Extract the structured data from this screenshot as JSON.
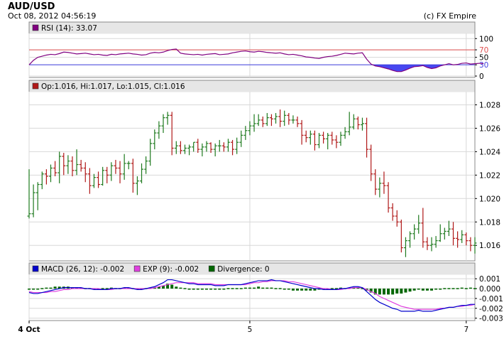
{
  "header": {
    "pair": "AUD/USD",
    "timestamp": "Oct 08, 2012 04:56:19",
    "copyright": "(c) FX Empire"
  },
  "colors": {
    "up": "#1e7a1e",
    "down": "#b01818",
    "rsi_line": "#800080",
    "rsi_fill": "#3333ee",
    "rsi_70": "#e05050",
    "rsi_30": "#4040e0",
    "macd": "#0000cc",
    "exp": "#e040e0",
    "divergence": "#006600",
    "legend_bg": "#e6e6e6",
    "grid": "#d8d8d8"
  },
  "chart_data": [
    {
      "type": "line",
      "panel": "rsi",
      "legend": [
        {
          "swatch_color": "#800080",
          "label": "RSI (14): 33.07"
        }
      ],
      "yticks": [
        "100",
        "70",
        "50",
        "30",
        "0"
      ],
      "ytick_values": [
        100,
        70,
        50,
        30,
        0
      ],
      "ylim": [
        0,
        110
      ],
      "reference_lines": [
        70,
        30
      ],
      "series": [
        {
          "values": [
            30,
            42,
            50,
            53,
            56,
            58,
            57,
            60,
            64,
            63,
            61,
            59,
            60,
            61,
            59,
            57,
            58,
            56,
            55,
            58,
            57,
            59,
            60,
            61,
            59,
            58,
            56,
            57,
            61,
            63,
            62,
            64,
            68,
            71,
            72,
            61,
            59,
            58,
            57,
            58,
            56,
            58,
            59,
            60,
            57,
            58,
            59,
            62,
            64,
            66,
            67,
            65,
            64,
            66,
            65,
            63,
            62,
            61,
            62,
            59,
            57,
            58,
            56,
            54,
            51,
            50,
            48,
            47,
            50,
            52,
            53,
            55,
            58,
            61,
            60,
            59,
            61,
            62,
            45,
            32,
            27,
            25,
            22,
            19,
            15,
            12,
            12,
            16,
            21,
            25,
            26,
            28,
            23,
            20,
            22,
            27,
            30,
            33,
            30,
            31,
            34,
            35,
            32,
            33,
            34,
            33
          ]
        }
      ]
    },
    {
      "type": "ohlc",
      "panel": "price",
      "legend": [
        {
          "swatch_color": "#b01818",
          "label": "Op:1.016, Hi:1.017, Lo:1.015, Cl:1.016"
        }
      ],
      "yticks": [
        "1.028",
        "1.026",
        "1.024",
        "1.022",
        "1.020",
        "1.018",
        "1.016"
      ],
      "ytick_values": [
        1.028,
        1.026,
        1.024,
        1.022,
        1.02,
        1.018,
        1.016
      ],
      "ylim": [
        1.0148,
        1.029
      ],
      "close": [
        1.0187,
        1.0205,
        1.0212,
        1.0221,
        1.0219,
        1.0226,
        1.0222,
        1.0236,
        1.0228,
        1.0232,
        1.0224,
        1.0229,
        1.0226,
        1.0221,
        1.0211,
        1.0218,
        1.0212,
        1.0224,
        1.022,
        1.0228,
        1.0226,
        1.0221,
        1.023,
        1.023,
        1.0213,
        1.0215,
        1.0225,
        1.0232,
        1.0247,
        1.0256,
        1.0262,
        1.0269,
        1.0271,
        1.0243,
        1.0245,
        1.0241,
        1.0243,
        1.0244,
        1.0248,
        1.0242,
        1.0244,
        1.0247,
        1.0242,
        1.0245,
        1.0245,
        1.0244,
        1.0248,
        1.0242,
        1.0248,
        1.0254,
        1.0258,
        1.0262,
        1.0264,
        1.0267,
        1.0264,
        1.0269,
        1.0268,
        1.027,
        1.0266,
        1.0271,
        1.0267,
        1.0267,
        1.0264,
        1.0254,
        1.0252,
        1.0255,
        1.0246,
        1.0254,
        1.0251,
        1.0254,
        1.025,
        1.0248,
        1.0254,
        1.0257,
        1.0261,
        1.0268,
        1.0263,
        1.0264,
        1.0242,
        1.0221,
        1.0208,
        1.0213,
        1.0211,
        1.0192,
        1.0185,
        1.018,
        1.0158,
        1.0164,
        1.017,
        1.0174,
        1.0179,
        1.0163,
        1.016,
        1.0161,
        1.0164,
        1.017,
        1.0172,
        1.0174,
        1.0166,
        1.0165,
        1.0169,
        1.0164,
        1.016,
        1.0162
      ],
      "series": [
        {
          "name": "Op",
          "values": [
            1.0185,
            1.0187,
            1.0205,
            1.0212,
            1.0221,
            1.0219,
            1.0226,
            1.0222,
            1.0236,
            1.0228,
            1.0232,
            1.0224,
            1.0229,
            1.0226,
            1.0221,
            1.0211,
            1.0218,
            1.0212,
            1.0224,
            1.022,
            1.0228,
            1.0226,
            1.0221,
            1.023,
            1.023,
            1.0213,
            1.0215,
            1.0225,
            1.0232,
            1.0247,
            1.0256,
            1.0262,
            1.0269,
            1.0271,
            1.0243,
            1.0245,
            1.0241,
            1.0243,
            1.0244,
            1.0248,
            1.0242,
            1.0244,
            1.0247,
            1.0242,
            1.0245,
            1.0245,
            1.0244,
            1.0248,
            1.0242,
            1.0248,
            1.0254,
            1.0258,
            1.0262,
            1.0264,
            1.0267,
            1.0264,
            1.0269,
            1.0268,
            1.027,
            1.0266,
            1.0271,
            1.0267,
            1.0267,
            1.0264,
            1.0254,
            1.0252,
            1.0255,
            1.0246,
            1.0254,
            1.0251,
            1.0254,
            1.025,
            1.0248,
            1.0254,
            1.0257,
            1.0261,
            1.0268,
            1.0263,
            1.0264,
            1.0242,
            1.0221,
            1.0208,
            1.0213,
            1.0211,
            1.0192,
            1.0185,
            1.018,
            1.0158,
            1.0164,
            1.017,
            1.0174,
            1.0179,
            1.0163,
            1.016,
            1.0161,
            1.0164,
            1.017,
            1.0172,
            1.0174,
            1.0166,
            1.0165,
            1.0169,
            1.0164,
            1.016
          ]
        },
        {
          "name": "Hi",
          "values": [
            1.0225,
            1.0212,
            1.0214,
            1.0223,
            1.0225,
            1.0229,
            1.0232,
            1.024,
            1.0239,
            1.0237,
            1.0236,
            1.0242,
            1.0233,
            1.0231,
            1.0226,
            1.0221,
            1.0223,
            1.0227,
            1.0227,
            1.0231,
            1.0233,
            1.0232,
            1.0238,
            1.0232,
            1.0234,
            1.0219,
            1.023,
            1.0236,
            1.0251,
            1.0259,
            1.0266,
            1.0272,
            1.0274,
            1.0274,
            1.0249,
            1.0249,
            1.0246,
            1.0246,
            1.0248,
            1.0251,
            1.0247,
            1.0249,
            1.0248,
            1.0247,
            1.025,
            1.0248,
            1.0251,
            1.025,
            1.0252,
            1.0258,
            1.0262,
            1.0266,
            1.0272,
            1.0272,
            1.027,
            1.0273,
            1.0272,
            1.0273,
            1.0276,
            1.0275,
            1.0273,
            1.0271,
            1.027,
            1.0267,
            1.0258,
            1.0258,
            1.0258,
            1.0256,
            1.0257,
            1.0256,
            1.0257,
            1.0254,
            1.0257,
            1.0261,
            1.0274,
            1.0272,
            1.027,
            1.0269,
            1.0269,
            1.0246,
            1.0225,
            1.0218,
            1.0223,
            1.0214,
            1.0196,
            1.019,
            1.0182,
            1.0167,
            1.0172,
            1.0178,
            1.0186,
            1.0192,
            1.0167,
            1.0167,
            1.0168,
            1.0178,
            1.0175,
            1.0181,
            1.018,
            1.0172,
            1.0173,
            1.0171,
            1.0167,
            1.0167
          ]
        },
        {
          "name": "Lo",
          "values": [
            1.0183,
            1.0184,
            1.019,
            1.0208,
            1.0212,
            1.0214,
            1.0219,
            1.0213,
            1.022,
            1.0221,
            1.0219,
            1.022,
            1.0223,
            1.0214,
            1.0204,
            1.0209,
            1.0209,
            1.0211,
            1.0213,
            1.0215,
            1.0221,
            1.0213,
            1.0216,
            1.0225,
            1.0205,
            1.0203,
            1.0213,
            1.0221,
            1.0228,
            1.0242,
            1.0251,
            1.0256,
            1.0263,
            1.0237,
            1.0238,
            1.0238,
            1.0238,
            1.0237,
            1.024,
            1.0239,
            1.0236,
            1.024,
            1.0239,
            1.0236,
            1.024,
            1.024,
            1.024,
            1.0237,
            1.0238,
            1.0244,
            1.025,
            1.0254,
            1.0257,
            1.0262,
            1.0261,
            1.0262,
            1.0262,
            1.0264,
            1.0261,
            1.0262,
            1.0263,
            1.0264,
            1.0261,
            1.0246,
            1.0248,
            1.0246,
            1.0241,
            1.0243,
            1.0247,
            1.0242,
            1.0246,
            1.0243,
            1.0245,
            1.0251,
            1.0254,
            1.0259,
            1.0259,
            1.0258,
            1.0235,
            1.0215,
            1.0203,
            1.0201,
            1.0204,
            1.0188,
            1.0181,
            1.0176,
            1.0154,
            1.015,
            1.0158,
            1.0165,
            1.017,
            1.0158,
            1.0156,
            1.0155,
            1.0158,
            1.0163,
            1.0165,
            1.0168,
            1.016,
            1.0158,
            1.0162,
            1.016,
            1.0155,
            1.0153
          ]
        }
      ]
    },
    {
      "type": "line",
      "panel": "macd",
      "legend": [
        {
          "swatch_color": "#0000cc",
          "label": "MACD (26, 12): -0.002"
        },
        {
          "swatch_color": "#e040e0",
          "label": "EXP (9): -0.002"
        },
        {
          "swatch_color": "#006600",
          "label": "Divergence: 0"
        }
      ],
      "yticks": [
        "0.001",
        "0.000",
        "-0.001",
        "-0.002",
        "-0.003"
      ],
      "ytick_values": [
        0.001,
        0.0,
        -0.001,
        -0.002,
        -0.003
      ],
      "ylim": [
        -0.0031,
        0.0013
      ],
      "xticks": [
        "4 Oct",
        "5",
        "7"
      ],
      "xtick_positions": [
        0,
        51,
        101
      ],
      "series": [
        {
          "name": "MACD (26, 12)",
          "values": [
            -0.0004,
            -0.0005,
            -0.0005,
            -0.0004,
            -0.0003,
            -0.0002,
            -0.0001,
            0.0,
            0.0001,
            0.0001,
            0.0001,
            0.0001,
            0.0001,
            0.0,
            0.0,
            -0.0001,
            -0.0001,
            -0.0001,
            -0.0001,
            0.0,
            0.0,
            0.0,
            0.0001,
            0.0001,
            0.0,
            -0.0001,
            -0.0001,
            0.0,
            0.0001,
            0.0002,
            0.0004,
            0.0006,
            0.0009,
            0.0009,
            0.0008,
            0.0007,
            0.0006,
            0.0005,
            0.0005,
            0.0004,
            0.0004,
            0.0004,
            0.0004,
            0.0003,
            0.0003,
            0.0003,
            0.0004,
            0.0004,
            0.0004,
            0.0004,
            0.0005,
            0.0006,
            0.0007,
            0.0008,
            0.0008,
            0.0008,
            0.0009,
            0.0008,
            0.0008,
            0.0007,
            0.0006,
            0.0005,
            0.0004,
            0.0003,
            0.0002,
            0.0001,
            0.0,
            0.0,
            -0.0001,
            -0.0001,
            -0.0001,
            -0.0001,
            0.0,
            0.0,
            0.0001,
            0.0002,
            0.0002,
            0.0001,
            -0.0003,
            -0.0007,
            -0.0011,
            -0.0014,
            -0.0016,
            -0.0018,
            -0.002,
            -0.0021,
            -0.0023,
            -0.0023,
            -0.0023,
            -0.0023,
            -0.0022,
            -0.0023,
            -0.0023,
            -0.0023,
            -0.0022,
            -0.0021,
            -0.002,
            -0.0019,
            -0.0019,
            -0.0018,
            -0.0017,
            -0.0017,
            -0.0016,
            -0.0016
          ]
        },
        {
          "name": "EXP (9)",
          "values": [
            -0.0003,
            -0.0004,
            -0.0004,
            -0.0004,
            -0.0004,
            -0.0003,
            -0.0003,
            -0.0002,
            -0.0001,
            -0.0001,
            0.0,
            0.0,
            0.0,
            0.0,
            0.0,
            0.0,
            0.0,
            -0.0001,
            -0.0001,
            -0.0001,
            0.0,
            0.0,
            0.0,
            0.0,
            0.0,
            0.0,
            0.0,
            0.0,
            0.0,
            0.0001,
            0.0002,
            0.0003,
            0.0004,
            0.0005,
            0.0006,
            0.0006,
            0.0006,
            0.0006,
            0.0006,
            0.0005,
            0.0005,
            0.0005,
            0.0005,
            0.0004,
            0.0004,
            0.0004,
            0.0004,
            0.0004,
            0.0004,
            0.0004,
            0.0004,
            0.0005,
            0.0006,
            0.0006,
            0.0007,
            0.0007,
            0.0008,
            0.0008,
            0.0008,
            0.0008,
            0.0007,
            0.0007,
            0.0006,
            0.0005,
            0.0004,
            0.0003,
            0.0002,
            0.0001,
            0.0,
            0.0,
            -0.0001,
            -0.0001,
            -0.0001,
            0.0,
            0.0,
            0.0001,
            0.0001,
            0.0001,
            -0.0001,
            -0.0003,
            -0.0005,
            -0.0008,
            -0.001,
            -0.0012,
            -0.0014,
            -0.0016,
            -0.0018,
            -0.0019,
            -0.002,
            -0.0021,
            -0.0021,
            -0.0021,
            -0.0021,
            -0.0021,
            -0.0021,
            -0.002,
            -0.002,
            -0.0019,
            -0.0019,
            -0.0018,
            -0.0018,
            -0.0017,
            -0.0017,
            -0.0016
          ]
        },
        {
          "name": "Divergence",
          "values": [
            -0.0001,
            -0.0001,
            -0.0001,
            0.0,
            0.0001,
            0.0001,
            0.0002,
            0.0002,
            0.0002,
            0.0002,
            0.0001,
            0.0001,
            0.0001,
            0.0,
            0.0,
            -0.0001,
            -0.0001,
            0.0,
            0.0,
            0.0001,
            0.0,
            0.0,
            0.0001,
            0.0001,
            0.0,
            -0.0001,
            -0.0001,
            0.0,
            0.0001,
            0.0001,
            0.0002,
            0.0003,
            0.0005,
            0.0004,
            0.0002,
            0.0001,
            0.0,
            -0.0001,
            -0.0001,
            -0.0001,
            -0.0001,
            -0.0001,
            -0.0001,
            -0.0001,
            -0.0001,
            -0.0001,
            0.0,
            0.0,
            0.0,
            0.0,
            0.0001,
            0.0001,
            0.0001,
            0.0002,
            0.0001,
            0.0001,
            0.0001,
            0.0,
            0.0,
            -0.0001,
            -0.0001,
            -0.0002,
            -0.0002,
            -0.0002,
            -0.0002,
            -0.0002,
            -0.0002,
            -0.0001,
            -0.0001,
            -0.0001,
            0.0,
            0.0,
            0.0001,
            0.0,
            0.0001,
            0.0001,
            0.0001,
            0.0,
            -0.0002,
            -0.0004,
            -0.0006,
            -0.0006,
            -0.0006,
            -0.0006,
            -0.0006,
            -0.0005,
            -0.0005,
            -0.0004,
            -0.0003,
            -0.0002,
            -0.0001,
            -0.0002,
            -0.0002,
            -0.0002,
            -0.0001,
            -0.0001,
            0.0,
            0.0,
            0.0,
            0.0,
            0.0001,
            0.0,
            0.0001,
            0.0
          ]
        }
      ]
    }
  ]
}
